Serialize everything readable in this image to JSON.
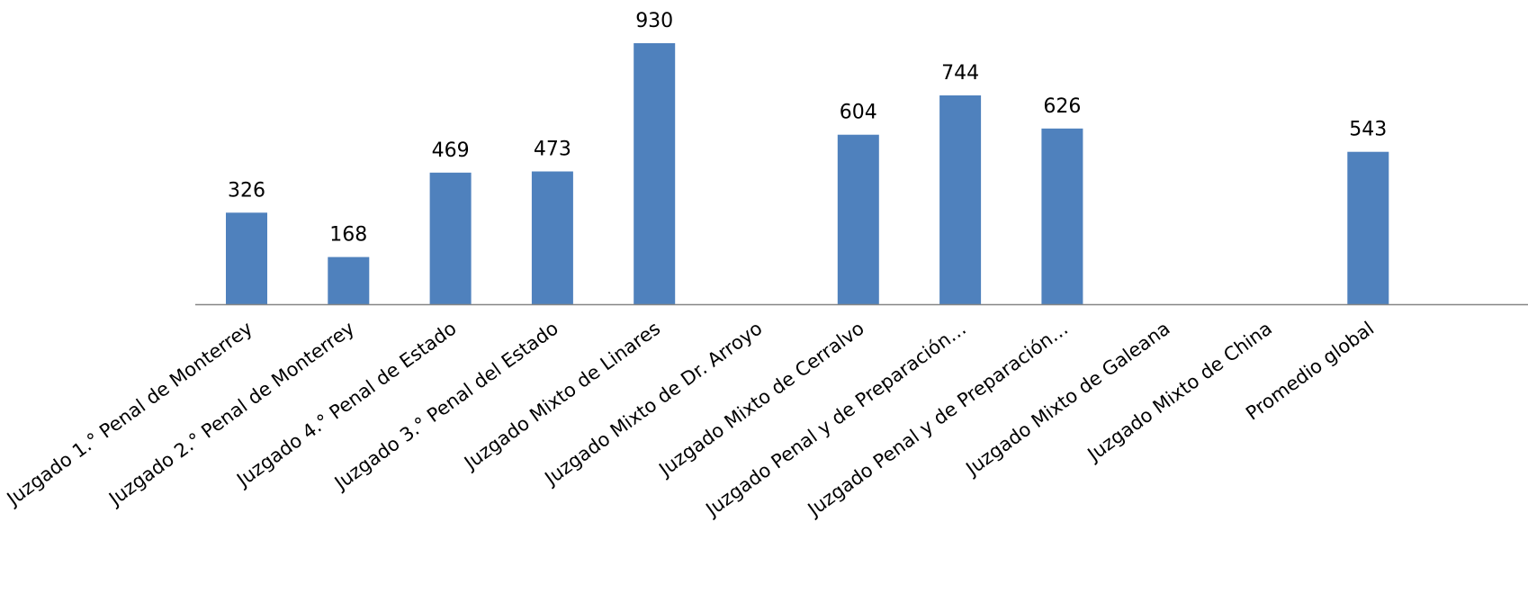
{
  "chart_data": {
    "type": "bar",
    "title": "",
    "xlabel": "",
    "ylabel": "",
    "ylim": [
      0,
      1000
    ],
    "grid": false,
    "legend": "none",
    "bar_color": "#4F81BD",
    "axis_color": "#868686",
    "categories": [
      "Juzgado 1.° Penal de Monterrey",
      "Juzgado 2.° Penal de Monterrey",
      "Juzgado 4.° Penal de Estado",
      "Juzgado 3.° Penal del Estado",
      "Juzgado Mixto de  Linares",
      "Juzgado Mixto de Dr. Arroyo",
      "Juzgado Mixto de Cerralvo",
      "Juzgado Penal y de Preparación…",
      "Juzgado Penal y de Preparación…",
      "Juzgado Mixto de Galeana",
      "Juzgado Mixto de China",
      "Promedio global"
    ],
    "values": [
      326,
      168,
      469,
      473,
      930,
      null,
      604,
      744,
      626,
      null,
      null,
      543
    ],
    "data_labels": [
      "326",
      "168",
      "469",
      "473",
      "930",
      "",
      "604",
      "744",
      "626",
      "",
      "",
      "543"
    ]
  }
}
